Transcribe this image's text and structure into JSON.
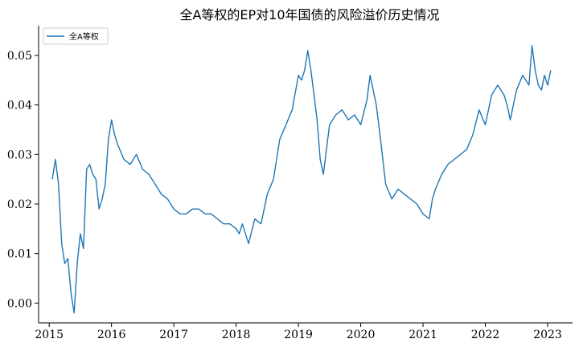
{
  "chart_data": {
    "type": "line",
    "title": "全A等权的EP对10年国债的风险溢价历史情况",
    "xlabel": "",
    "ylabel": "",
    "xlim": [
      2014.83,
      2023.4
    ],
    "ylim": [
      -0.004,
      0.056
    ],
    "x_ticks": [
      "2015",
      "2016",
      "2017",
      "2018",
      "2019",
      "2020",
      "2021",
      "2022",
      "2023"
    ],
    "y_ticks": [
      "0.00",
      "0.01",
      "0.02",
      "0.03",
      "0.04",
      "0.05"
    ],
    "legend": {
      "position": "top-left",
      "entries": [
        "全A等权"
      ]
    },
    "grid": false,
    "color": "#1f77b4",
    "series": [
      {
        "name": "全A等权",
        "x": [
          2015.05,
          2015.1,
          2015.15,
          2015.2,
          2015.25,
          2015.3,
          2015.35,
          2015.4,
          2015.45,
          2015.5,
          2015.55,
          2015.6,
          2015.65,
          2015.7,
          2015.75,
          2015.8,
          2015.85,
          2015.9,
          2015.95,
          2016.0,
          2016.05,
          2016.1,
          2016.2,
          2016.3,
          2016.4,
          2016.5,
          2016.6,
          2016.7,
          2016.8,
          2016.9,
          2017.0,
          2017.1,
          2017.2,
          2017.3,
          2017.4,
          2017.5,
          2017.6,
          2017.7,
          2017.8,
          2017.9,
          2018.0,
          2018.05,
          2018.1,
          2018.2,
          2018.3,
          2018.4,
          2018.5,
          2018.6,
          2018.7,
          2018.8,
          2018.9,
          2019.0,
          2019.05,
          2019.1,
          2019.15,
          2019.2,
          2019.25,
          2019.3,
          2019.35,
          2019.4,
          2019.5,
          2019.6,
          2019.7,
          2019.8,
          2019.9,
          2020.0,
          2020.1,
          2020.15,
          2020.2,
          2020.25,
          2020.3,
          2020.4,
          2020.5,
          2020.6,
          2020.7,
          2020.8,
          2020.9,
          2021.0,
          2021.1,
          2021.15,
          2021.2,
          2021.3,
          2021.4,
          2021.5,
          2021.6,
          2021.7,
          2021.8,
          2021.9,
          2022.0,
          2022.1,
          2022.2,
          2022.3,
          2022.35,
          2022.4,
          2022.5,
          2022.6,
          2022.7,
          2022.75,
          2022.8,
          2022.85,
          2022.9,
          2022.95,
          2023.0,
          2023.05
        ],
        "values": [
          0.025,
          0.029,
          0.024,
          0.012,
          0.008,
          0.009,
          0.002,
          -0.002,
          0.008,
          0.014,
          0.011,
          0.027,
          0.028,
          0.026,
          0.025,
          0.019,
          0.021,
          0.024,
          0.033,
          0.037,
          0.034,
          0.032,
          0.029,
          0.028,
          0.03,
          0.027,
          0.026,
          0.024,
          0.022,
          0.021,
          0.019,
          0.018,
          0.018,
          0.019,
          0.019,
          0.018,
          0.018,
          0.017,
          0.016,
          0.016,
          0.015,
          0.014,
          0.016,
          0.012,
          0.017,
          0.016,
          0.022,
          0.025,
          0.033,
          0.036,
          0.039,
          0.046,
          0.045,
          0.047,
          0.051,
          0.047,
          0.042,
          0.037,
          0.029,
          0.026,
          0.036,
          0.038,
          0.039,
          0.037,
          0.038,
          0.036,
          0.041,
          0.046,
          0.043,
          0.04,
          0.035,
          0.024,
          0.021,
          0.023,
          0.022,
          0.021,
          0.02,
          0.018,
          0.017,
          0.021,
          0.023,
          0.026,
          0.028,
          0.029,
          0.03,
          0.031,
          0.034,
          0.039,
          0.036,
          0.042,
          0.044,
          0.042,
          0.04,
          0.037,
          0.043,
          0.046,
          0.044,
          0.052,
          0.047,
          0.044,
          0.043,
          0.046,
          0.044,
          0.047
        ]
      }
    ]
  }
}
